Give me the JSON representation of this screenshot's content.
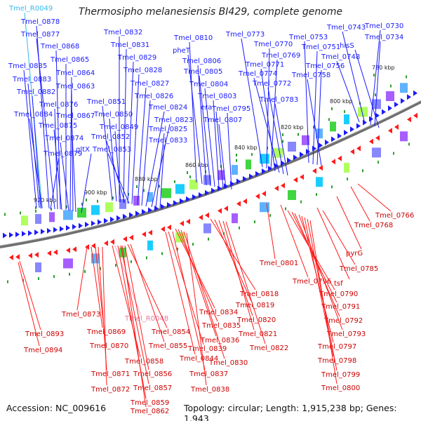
{
  "title": "Thermosipho melanesiensis BI429, complete genome",
  "footer": {
    "accession": "Accession: NC_009616",
    "topology": "Topology: circular; Length: 1,915,238 bp; Genes: 1,943"
  },
  "colors": {
    "forward": "#1a1aff",
    "reverse": "#ff1a1a",
    "rna_forward": "#33bbee",
    "rna_reverse": "#ff99bb",
    "backbone": "#777777",
    "tick": "#2aa02a"
  },
  "scale_ticks": [
    "780 kbp",
    "800 kbp",
    "820 kbp",
    "840 kbp",
    "860 kbp",
    "880 kbp",
    "900 kbp",
    "920 kbp"
  ],
  "forward_labels": [
    "Tmel_R0049",
    "Tmel_0878",
    "Tmel_0877",
    "Tmel_0868",
    "Tmel_0865",
    "Tmel_0885",
    "Tmel_0864",
    "Tmel_0883",
    "Tmel_0863",
    "Tmel_0882",
    "Tmel_0876",
    "Tmel_0884",
    "Tmel_0867",
    "Tmel_0875",
    "Tmel_0874",
    "gltX",
    "Tmel_0879",
    "Tmel_0832",
    "Tmel_0831",
    "Tmel_0829",
    "Tmel_0828",
    "Tmel_0827",
    "Tmel_0826",
    "Tmel_0851",
    "Tmel_0850",
    "Tmel_0824",
    "Tmel_0849",
    "Tmel_0823",
    "Tmel_0852",
    "Tmel_0825",
    "Tmel_0833",
    "Tmel_0853",
    "Tmel_0810",
    "pheT",
    "Tmel_0806",
    "Tmel_0805",
    "Tmel_0804",
    "Tmel_0803",
    "era",
    "Tmel_0807",
    "Tmel_0795",
    "Tmel_0773",
    "Tmel_0770",
    "Tmel_0769",
    "Tmel_0771",
    "Tmel_0774",
    "Tmel_0772",
    "Tmel_0783",
    "Tmel_0753",
    "Tmel_0751",
    "Tmel_0756",
    "Tmel_0758",
    "Tmel_0743",
    "Tmel_0730",
    "Tmel_0734",
    "hisS",
    "Tmel_0748"
  ],
  "reverse_labels": [
    "Tmel_0766",
    "Tmel_0768",
    "pyrG",
    "Tmel_0801",
    "Tmel_0785",
    "Tmel_0796",
    "tsf",
    "Tmel_0790",
    "Tmel_0791",
    "Tmel_0792",
    "Tmel_0793",
    "Tmel_0797",
    "Tmel_0798",
    "Tmel_0799",
    "Tmel_0800",
    "Tmel_0818",
    "Tmel_0819",
    "Tmel_0820",
    "Tmel_0821",
    "Tmel_0822",
    "Tmel_0834",
    "Tmel_0835",
    "Tmel_0836",
    "Tmel_0839",
    "Tmel_0844",
    "Tmel_0830",
    "Tmel_0837",
    "Tmel_0838",
    "Tmel_0873",
    "Tmel_R0048",
    "Tmel_0869",
    "Tmel_0854",
    "Tmel_0870",
    "Tmel_0855",
    "Tmel_0858",
    "Tmel_0856",
    "Tmel_0871",
    "Tmel_0857",
    "Tmel_0872",
    "Tmel_0859",
    "Tmel_0862",
    "Tmel_0893",
    "Tmel_0894"
  ]
}
